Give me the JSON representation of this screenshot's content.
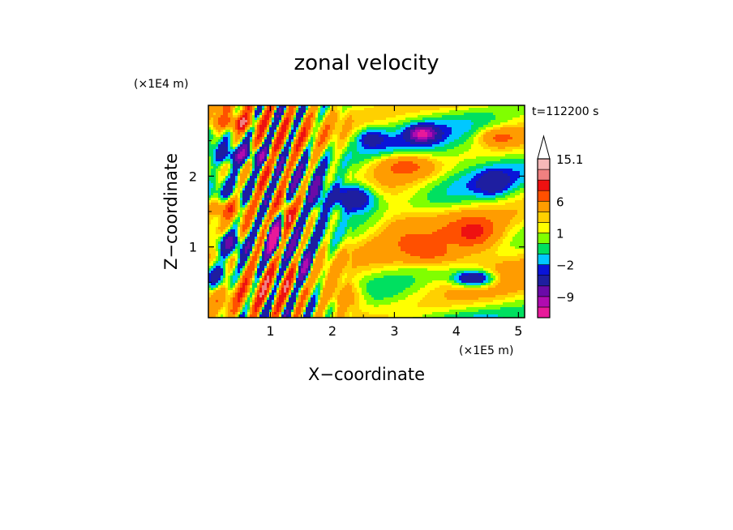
{
  "chart_data": {
    "type": "heatmap",
    "title": "zonal velocity",
    "xlabel": "X−coordinate",
    "ylabel": "Z−coordinate",
    "x_unit_label": "(×1E5 m)",
    "y_unit_label": "(×1E4 m)",
    "time_label": "t=112200 s",
    "xlim": [
      0,
      5.1
    ],
    "ylim": [
      0,
      3.0
    ],
    "x_ticks": [
      1,
      2,
      3,
      4,
      5
    ],
    "x_tick_labels": [
      "1",
      "2",
      "3",
      "4",
      "5"
    ],
    "y_ticks": [
      1,
      2
    ],
    "y_tick_labels": [
      "1",
      "2"
    ],
    "colorbar": {
      "levels": [
        -15,
        -12,
        -9,
        -6,
        -3,
        -2,
        -1,
        0,
        1,
        2,
        3,
        6,
        9,
        12,
        15.1
      ],
      "colors": [
        "#e8199a",
        "#b00bb0",
        "#6a0aa8",
        "#1e1ea0",
        "#0a14d8",
        "#00c8ff",
        "#00e060",
        "#80ff00",
        "#ffff00",
        "#ffd000",
        "#ff9c00",
        "#ff5000",
        "#ee1111",
        "#f08080",
        "#f6b8b8"
      ],
      "top_color": "#ffffff",
      "labels": [
        "15.1",
        "6",
        "1",
        "−2",
        "−9"
      ],
      "label_values": [
        15.1,
        6,
        1,
        -2,
        -9
      ]
    },
    "features": [
      {
        "x": 0.15,
        "z": 0.55,
        "sx": 0.25,
        "sz": 0.18,
        "value": -6
      },
      {
        "x": 0.35,
        "z": 1.05,
        "sx": 0.28,
        "sz": 0.17,
        "value": -9
      },
      {
        "x": 0.6,
        "z": 2.3,
        "sx": 0.45,
        "sz": 0.14,
        "value": -9
      },
      {
        "x": 0.3,
        "z": 1.55,
        "sx": 0.35,
        "sz": 0.15,
        "value": 8
      },
      {
        "x": 0.5,
        "z": 2.75,
        "sx": 0.4,
        "sz": 0.12,
        "value": 8
      },
      {
        "x": 0.9,
        "z": 1.9,
        "sx": 0.3,
        "sz": 0.25,
        "value": 6
      },
      {
        "x": 1.05,
        "z": 1.15,
        "sx": 0.12,
        "sz": 0.25,
        "value": -12
      },
      {
        "x": 1.25,
        "z": 1.5,
        "sx": 0.1,
        "sz": 0.2,
        "value": 9
      },
      {
        "x": 1.55,
        "z": 0.7,
        "sx": 0.15,
        "sz": 0.25,
        "value": -9
      },
      {
        "x": 1.75,
        "z": 1.7,
        "sx": 0.15,
        "sz": 0.3,
        "value": -6
      },
      {
        "x": 2.3,
        "z": 1.7,
        "sx": 0.4,
        "sz": 0.2,
        "value": -9
      },
      {
        "x": 2.2,
        "z": 0.3,
        "sx": 0.3,
        "sz": 0.2,
        "value": 5
      },
      {
        "x": 3.15,
        "z": 2.15,
        "sx": 0.45,
        "sz": 0.16,
        "value": 6
      },
      {
        "x": 3.1,
        "z": 1.3,
        "sx": 0.35,
        "sz": 0.3,
        "value": 1.5
      },
      {
        "x": 3.45,
        "z": 2.6,
        "sx": 0.2,
        "sz": 0.1,
        "value": -12
      },
      {
        "x": 3.6,
        "z": 0.9,
        "sx": 0.4,
        "sz": 0.12,
        "value": 4
      },
      {
        "x": 4.3,
        "z": 1.2,
        "sx": 0.35,
        "sz": 0.22,
        "value": 6
      },
      {
        "x": 4.3,
        "z": 0.55,
        "sx": 0.35,
        "sz": 0.12,
        "value": -9
      },
      {
        "x": 4.7,
        "z": 2.55,
        "sx": 0.3,
        "sz": 0.12,
        "value": 5
      },
      {
        "x": 4.6,
        "z": 1.9,
        "sx": 0.25,
        "sz": 0.18,
        "value": -3
      },
      {
        "x": 2.6,
        "z": 2.55,
        "sx": 0.25,
        "sz": 0.15,
        "value": -4
      }
    ]
  }
}
